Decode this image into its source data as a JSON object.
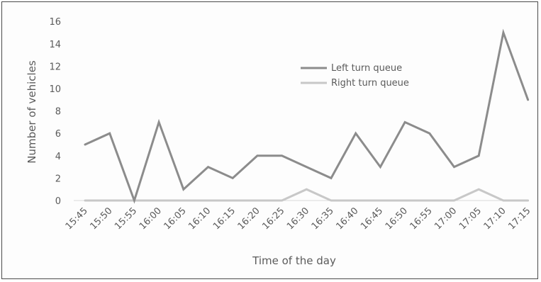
{
  "chart_data": {
    "type": "line",
    "title": "",
    "xlabel": "Time of the day",
    "ylabel": "Number of vehicles",
    "categories": [
      "15:45",
      "15:50",
      "15:55",
      "16:00",
      "16:05",
      "16:10",
      "16:15",
      "16:20",
      "16:25",
      "16:30",
      "16:35",
      "16:40",
      "16:45",
      "16:50",
      "16:55",
      "17:00",
      "17:05",
      "17:10",
      "17:15"
    ],
    "series": [
      {
        "name": "Left turn queue",
        "color": "#8c8c8c",
        "values": [
          5,
          6,
          0,
          7,
          1,
          3,
          2,
          4,
          4,
          3,
          2,
          6,
          3,
          7,
          6,
          3,
          4,
          15,
          9
        ]
      },
      {
        "name": "Right turn queue",
        "color": "#c8c8c8",
        "values": [
          0,
          0,
          0,
          0,
          0,
          0,
          0,
          0,
          0,
          1,
          0,
          0,
          0,
          0,
          0,
          0,
          1,
          0,
          0
        ]
      }
    ],
    "ylim": [
      0,
      16
    ],
    "yticks": [
      0,
      2,
      4,
      6,
      8,
      10,
      12,
      14,
      16
    ],
    "grid": false,
    "legend": "upper-center"
  }
}
